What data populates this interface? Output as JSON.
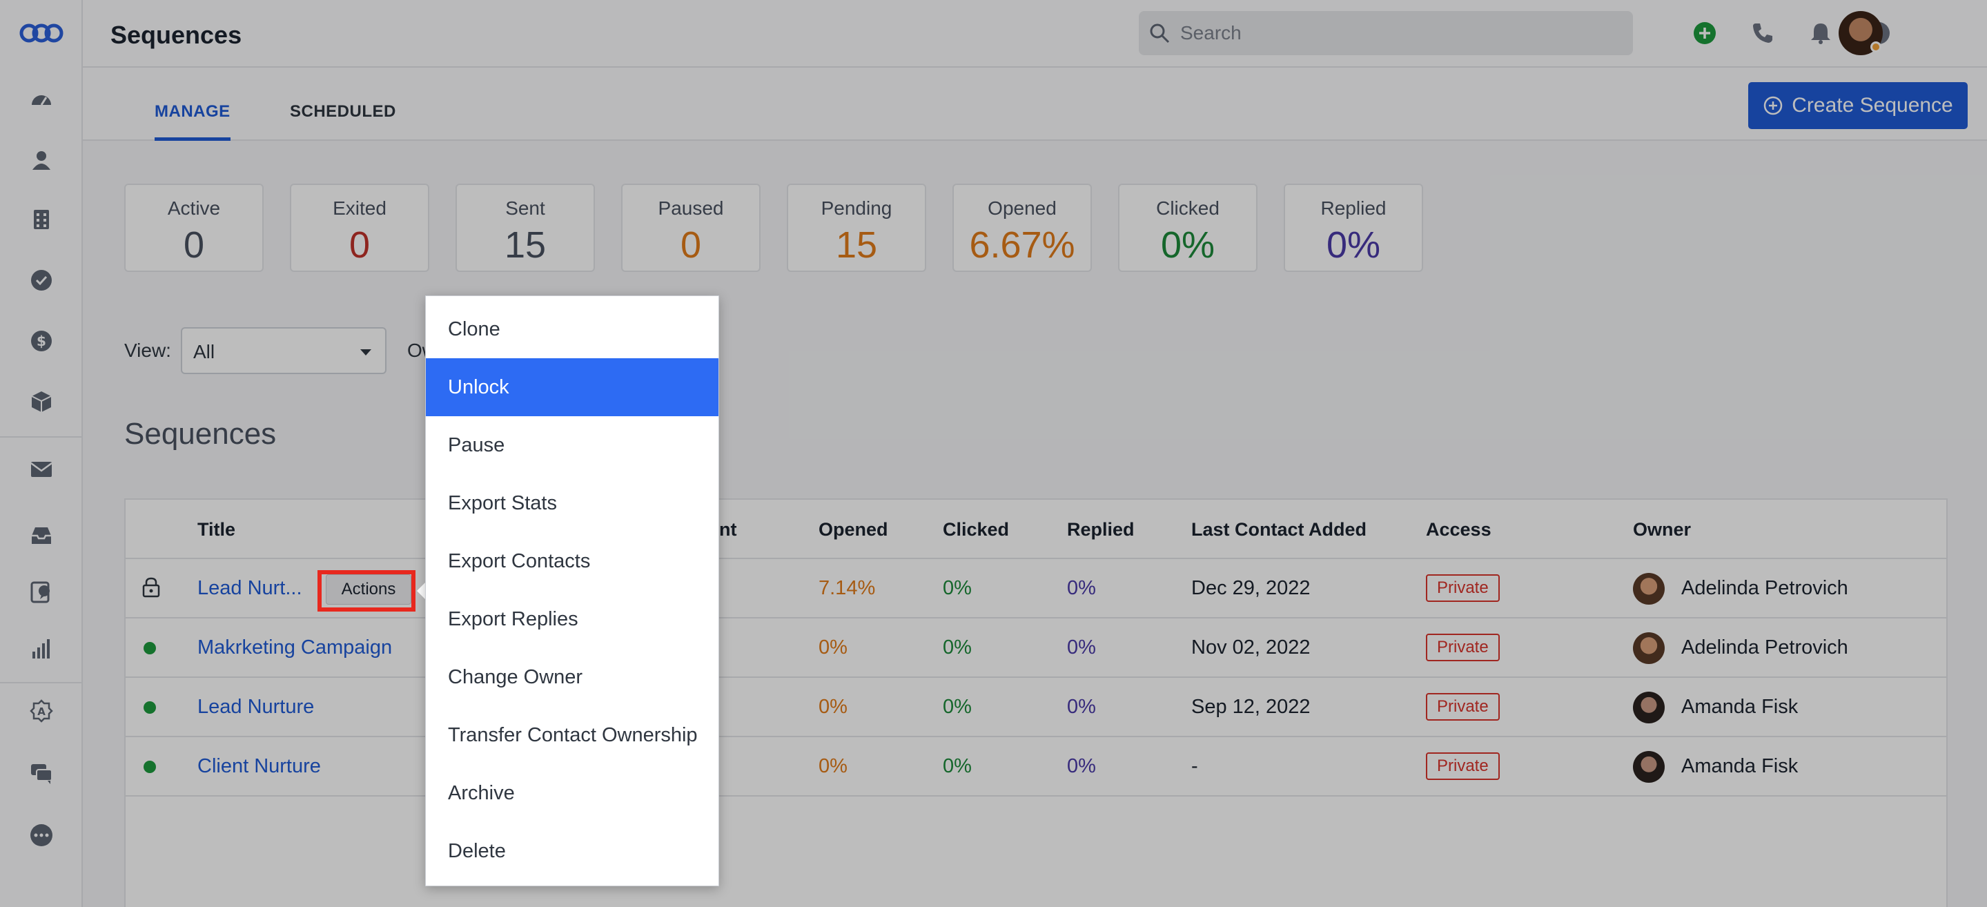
{
  "app": {
    "page_title": "Sequences",
    "search_placeholder": "Search"
  },
  "sidebar": {
    "icons": [
      "logo-icon",
      "dashboard-icon",
      "contacts-icon",
      "companies-icon",
      "tasks-icon",
      "deals-icon",
      "products-icon",
      "email-icon",
      "inbox-icon",
      "conversations-icon",
      "reports-icon",
      "automation-icon",
      "chat-icon",
      "more-icon"
    ]
  },
  "header_icons": [
    "add-icon",
    "phone-icon",
    "bell-icon",
    "help-icon"
  ],
  "tabs": [
    {
      "label": "MANAGE",
      "active": true
    },
    {
      "label": "SCHEDULED",
      "active": false
    }
  ],
  "create_button": "Create Sequence",
  "stats": [
    {
      "label": "Active",
      "value": "0",
      "color": "#4a5260"
    },
    {
      "label": "Exited",
      "value": "0",
      "color": "#c0322b"
    },
    {
      "label": "Sent",
      "value": "15",
      "color": "#4a5260"
    },
    {
      "label": "Paused",
      "value": "0",
      "color": "#e07b1a"
    },
    {
      "label": "Pending",
      "value": "15",
      "color": "#e07b1a"
    },
    {
      "label": "Opened",
      "value": "6.67%",
      "color": "#e07b1a"
    },
    {
      "label": "Clicked",
      "value": "0%",
      "color": "#1d8a3a"
    },
    {
      "label": "Replied",
      "value": "0%",
      "color": "#4b3aa8"
    }
  ],
  "filters": {
    "view_label": "View:",
    "view_value": "All",
    "owner_label_partial": "Ow"
  },
  "section_title": "Sequences",
  "table": {
    "headers": {
      "title": "Title",
      "sent_partial": "nt",
      "opened": "Opened",
      "clicked": "Clicked",
      "replied": "Replied",
      "last_contact": "Last Contact Added",
      "access": "Access",
      "owner": "Owner"
    },
    "actions_label": "Actions",
    "rows": [
      {
        "status": "locked",
        "title": "Lead Nurt...",
        "opened": "7.14%",
        "clicked": "0%",
        "replied": "0%",
        "last_contact": "Dec 29, 2022",
        "access": "Private",
        "owner": "Adelinda Petrovich"
      },
      {
        "status": "active",
        "title": "Makrketing Campaign",
        "opened": "0%",
        "clicked": "0%",
        "replied": "0%",
        "last_contact": "Nov 02, 2022",
        "access": "Private",
        "owner": "Adelinda Petrovich"
      },
      {
        "status": "active",
        "title": "Lead Nurture",
        "opened": "0%",
        "clicked": "0%",
        "replied": "0%",
        "last_contact": "Sep 12, 2022",
        "access": "Private",
        "owner": "Amanda Fisk"
      },
      {
        "status": "active",
        "title": "Client Nurture",
        "opened": "0%",
        "clicked": "0%",
        "replied": "0%",
        "last_contact": "-",
        "access": "Private",
        "owner": "Amanda Fisk"
      }
    ]
  },
  "actions_menu": {
    "items": [
      {
        "label": "Clone",
        "highlighted": false
      },
      {
        "label": "Unlock",
        "highlighted": true
      },
      {
        "label": "Pause",
        "highlighted": false
      },
      {
        "label": "Export Stats",
        "highlighted": false
      },
      {
        "label": "Export Contacts",
        "highlighted": false
      },
      {
        "label": "Export Replies",
        "highlighted": false
      },
      {
        "label": "Change Owner",
        "highlighted": false
      },
      {
        "label": "Transfer Contact Ownership",
        "highlighted": false
      },
      {
        "label": "Archive",
        "highlighted": false
      },
      {
        "label": "Delete",
        "highlighted": false
      }
    ]
  },
  "colors": {
    "accent": "#1f5bd6",
    "menu_highlight": "#2d6bf3",
    "opened_orange": "#e07b1a",
    "clicked_green": "#1d8a3a",
    "replied_purple": "#4b3aa8",
    "private_red": "#d8342c",
    "status_green": "#1d9a3d"
  }
}
